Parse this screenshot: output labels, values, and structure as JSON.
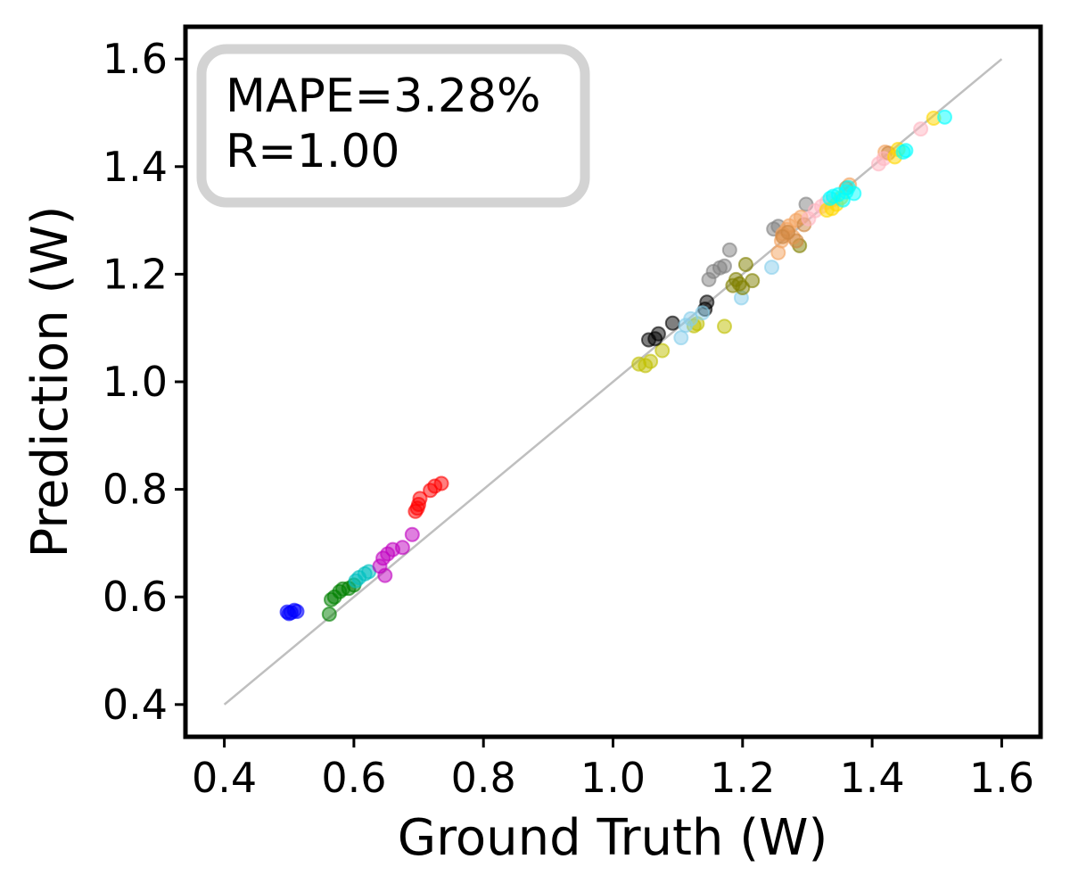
{
  "chart_data": {
    "type": "scatter",
    "title": "",
    "xlabel": "Ground Truth (W)",
    "ylabel": "Prediction (W)",
    "xlim": [
      0.34,
      1.66
    ],
    "ylim": [
      0.34,
      1.66
    ],
    "xticks": [
      0.4,
      0.6,
      0.8,
      1.0,
      1.2,
      1.4,
      1.6
    ],
    "yticks": [
      0.4,
      0.6,
      0.8,
      1.0,
      1.2,
      1.4,
      1.6
    ],
    "xtick_labels": [
      "0.4",
      "0.6",
      "0.8",
      "1.0",
      "1.2",
      "1.4",
      "1.6"
    ],
    "ytick_labels": [
      "0.4",
      "0.6",
      "0.8",
      "1.0",
      "1.2",
      "1.4",
      "1.6"
    ],
    "grid": false,
    "reference_line": {
      "x": [
        0.4,
        1.6
      ],
      "y": [
        0.4,
        1.6
      ],
      "color": "#bfbfbf"
    },
    "annotation": {
      "lines": [
        "MAPE=3.28%",
        "R=1.00"
      ],
      "placement": "top-left",
      "border_color": "#d3d3d3"
    },
    "series": [
      {
        "name": "blue",
        "color": "#0000ff",
        "points": [
          [
            0.497,
            0.572
          ],
          [
            0.503,
            0.571
          ],
          [
            0.508,
            0.575
          ],
          [
            0.512,
            0.573
          ],
          [
            0.5,
            0.569
          ]
        ]
      },
      {
        "name": "green",
        "color": "#008000",
        "points": [
          [
            0.562,
            0.568
          ],
          [
            0.565,
            0.595
          ],
          [
            0.57,
            0.6
          ],
          [
            0.578,
            0.61
          ],
          [
            0.583,
            0.615
          ],
          [
            0.592,
            0.616
          ],
          [
            0.6,
            0.622
          ]
        ]
      },
      {
        "name": "cyan",
        "color": "#00bfbf",
        "points": [
          [
            0.603,
            0.63
          ],
          [
            0.608,
            0.636
          ],
          [
            0.617,
            0.643
          ],
          [
            0.623,
            0.647
          ]
        ]
      },
      {
        "name": "magenta",
        "color": "#bf00bf",
        "points": [
          [
            0.64,
            0.657
          ],
          [
            0.645,
            0.672
          ],
          [
            0.648,
            0.64
          ],
          [
            0.652,
            0.68
          ],
          [
            0.66,
            0.688
          ],
          [
            0.675,
            0.692
          ],
          [
            0.69,
            0.716
          ]
        ]
      },
      {
        "name": "red",
        "color": "#ff0000",
        "points": [
          [
            0.695,
            0.759
          ],
          [
            0.698,
            0.765
          ],
          [
            0.7,
            0.772
          ],
          [
            0.702,
            0.783
          ],
          [
            0.718,
            0.798
          ],
          [
            0.725,
            0.806
          ],
          [
            0.735,
            0.811
          ]
        ]
      },
      {
        "name": "olive-yellow",
        "color": "#bfbf00",
        "points": [
          [
            1.04,
            1.033
          ],
          [
            1.05,
            1.03
          ],
          [
            1.058,
            1.038
          ],
          [
            1.076,
            1.058
          ],
          [
            1.125,
            1.104
          ],
          [
            1.13,
            1.108
          ],
          [
            1.172,
            1.103
          ]
        ]
      },
      {
        "name": "black",
        "color": "#000000",
        "points": [
          [
            1.055,
            1.078
          ],
          [
            1.065,
            1.08
          ],
          [
            1.07,
            1.089
          ],
          [
            1.092,
            1.109
          ],
          [
            1.142,
            1.135
          ],
          [
            1.145,
            1.148
          ]
        ]
      },
      {
        "name": "lightblue",
        "color": "#87ceeb",
        "points": [
          [
            1.105,
            1.082
          ],
          [
            1.112,
            1.105
          ],
          [
            1.12,
            1.117
          ],
          [
            1.138,
            1.128
          ],
          [
            1.198,
            1.156
          ],
          [
            1.245,
            1.213
          ]
        ]
      },
      {
        "name": "gray",
        "color": "#808080",
        "points": [
          [
            1.148,
            1.19
          ],
          [
            1.155,
            1.205
          ],
          [
            1.165,
            1.212
          ],
          [
            1.172,
            1.215
          ],
          [
            1.18,
            1.245
          ],
          [
            1.248,
            1.284
          ],
          [
            1.255,
            1.289
          ],
          [
            1.298,
            1.33
          ]
        ]
      },
      {
        "name": "olive",
        "color": "#808000",
        "points": [
          [
            1.185,
            1.179
          ],
          [
            1.19,
            1.19
          ],
          [
            1.195,
            1.182
          ],
          [
            1.2,
            1.175
          ],
          [
            1.205,
            1.218
          ],
          [
            1.215,
            1.188
          ],
          [
            1.288,
            1.253
          ]
        ]
      },
      {
        "name": "orange",
        "color": "#f4a460",
        "points": [
          [
            1.255,
            1.24
          ],
          [
            1.26,
            1.262
          ],
          [
            1.262,
            1.275
          ],
          [
            1.268,
            1.283
          ],
          [
            1.272,
            1.29
          ],
          [
            1.278,
            1.269
          ],
          [
            1.283,
            1.3
          ],
          [
            1.29,
            1.306
          ],
          [
            1.365,
            1.366
          ],
          [
            1.42,
            1.427
          ]
        ]
      },
      {
        "name": "sienna",
        "color": "#cd853f",
        "points": [
          [
            1.262,
            1.27
          ],
          [
            1.27,
            1.278
          ],
          [
            1.283,
            1.262
          ],
          [
            1.295,
            1.292
          ],
          [
            1.36,
            1.36
          ],
          [
            1.425,
            1.425
          ]
        ]
      },
      {
        "name": "pink",
        "color": "#ffb6c1",
        "points": [
          [
            1.302,
            1.303
          ],
          [
            1.312,
            1.318
          ],
          [
            1.322,
            1.326
          ],
          [
            1.33,
            1.334
          ],
          [
            1.34,
            1.339
          ],
          [
            1.41,
            1.405
          ],
          [
            1.418,
            1.415
          ],
          [
            1.475,
            1.47
          ]
        ]
      },
      {
        "name": "gold",
        "color": "#ffd700",
        "points": [
          [
            1.33,
            1.319
          ],
          [
            1.338,
            1.322
          ],
          [
            1.345,
            1.33
          ],
          [
            1.352,
            1.342
          ],
          [
            1.435,
            1.418
          ],
          [
            1.44,
            1.432
          ],
          [
            1.495,
            1.49
          ]
        ]
      },
      {
        "name": "aqua",
        "color": "#00ffff",
        "points": [
          [
            1.335,
            1.341
          ],
          [
            1.34,
            1.345
          ],
          [
            1.348,
            1.348
          ],
          [
            1.355,
            1.338
          ],
          [
            1.36,
            1.353
          ],
          [
            1.363,
            1.361
          ],
          [
            1.372,
            1.35
          ],
          [
            1.448,
            1.427
          ],
          [
            1.452,
            1.43
          ],
          [
            1.512,
            1.492
          ]
        ]
      }
    ]
  }
}
